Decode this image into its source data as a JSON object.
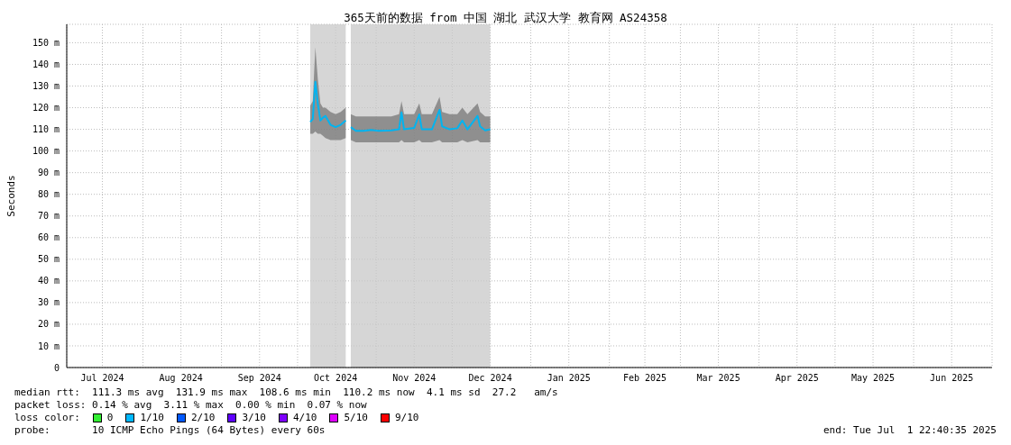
{
  "chart_data": {
    "type": "line",
    "title": "365天前的数据 from 中国 湖北 武汉大学 教育网 AS24358",
    "ylabel": "Seconds",
    "x": [
      "2024-10-06",
      "2024-10-07",
      "2024-10-08",
      "2024-10-09",
      "2024-10-10",
      "2024-10-11",
      "2024-10-12",
      "2024-10-14",
      "2024-10-16",
      "2024-10-18",
      "2024-10-20",
      "2024-10-21",
      "2024-10-22",
      "2024-10-24",
      "2024-10-27",
      "2024-10-30",
      "2024-11-02",
      "2024-11-07",
      "2024-11-10",
      "2024-11-11",
      "2024-11-12",
      "2024-11-16",
      "2024-11-18",
      "2024-11-19",
      "2024-11-23",
      "2024-11-26",
      "2024-11-27",
      "2024-11-30",
      "2024-12-03",
      "2024-12-05",
      "2024-12-07",
      "2024-12-11",
      "2024-12-12",
      "2024-12-14",
      "2024-12-16"
    ],
    "series": [
      {
        "color": "#00b4f0",
        "values": [
          113.4,
          114.8,
          132,
          121.7,
          114.1,
          115.4,
          116.2,
          112.1,
          111,
          112.1,
          114.1,
          null,
          111,
          109.3,
          109.3,
          109.7,
          109.3,
          109.5,
          110,
          117.8,
          110,
          110.7,
          116.9,
          110,
          110,
          119,
          111.4,
          110,
          110.5,
          114.1,
          110,
          116.2,
          111.4,
          109.5,
          110
        ],
        "lower": [
          108,
          108,
          109,
          108,
          108,
          107,
          106,
          105,
          105,
          105,
          106,
          null,
          105,
          104,
          104,
          104,
          104,
          104,
          104,
          105,
          104,
          104,
          105,
          104,
          104,
          105,
          104,
          104,
          104,
          105,
          104,
          105,
          104,
          104,
          104
        ],
        "upper": [
          121,
          123,
          148,
          133,
          122,
          120,
          120,
          118,
          117,
          118,
          120,
          null,
          117,
          116,
          116,
          116,
          116,
          116,
          117,
          123,
          117,
          117,
          122,
          117,
          117,
          125,
          118,
          117,
          117,
          120,
          117,
          122,
          118,
          116,
          116
        ]
      }
    ],
    "xlim": [
      "2024-07-01T22:40",
      "2025-07-01T22:40"
    ],
    "xticks": [
      {
        "value": "2024-07-16",
        "label": "Jul 2024"
      },
      {
        "value": "2024-08-01",
        "label": null
      },
      {
        "value": "2024-08-16",
        "label": "Aug 2024"
      },
      {
        "value": "2024-09-01",
        "label": null
      },
      {
        "value": "2024-09-16",
        "label": "Sep 2024"
      },
      {
        "value": "2024-10-01",
        "label": null
      },
      {
        "value": "2024-10-16",
        "label": "Oct 2024"
      },
      {
        "value": "2024-11-01",
        "label": null
      },
      {
        "value": "2024-11-16",
        "label": "Nov 2024"
      },
      {
        "value": "2024-12-01",
        "label": null
      },
      {
        "value": "2024-12-16",
        "label": "Dec 2024"
      },
      {
        "value": "2025-01-01",
        "label": null
      },
      {
        "value": "2025-01-16",
        "label": "Jan 2025"
      },
      {
        "value": "2025-02-01",
        "label": null
      },
      {
        "value": "2025-02-15",
        "label": "Feb 2025"
      },
      {
        "value": "2025-03-01",
        "label": null
      },
      {
        "value": "2025-03-16",
        "label": "Mar 2025"
      },
      {
        "value": "2025-04-01",
        "label": null
      },
      {
        "value": "2025-04-16",
        "label": "Apr 2025"
      },
      {
        "value": "2025-05-01",
        "label": null
      },
      {
        "value": "2025-05-16",
        "label": "May 2025"
      },
      {
        "value": "2025-06-01",
        "label": null
      },
      {
        "value": "2025-06-16",
        "label": "Jun 2025"
      }
    ],
    "ylim": [
      0,
      158.5
    ],
    "yticks": [
      0,
      {
        "value": 10,
        "label": "10 m"
      },
      {
        "value": 20,
        "label": "20 m"
      },
      {
        "value": 30,
        "label": "30 m"
      },
      {
        "value": 40,
        "label": "40 m"
      },
      {
        "value": 50,
        "label": "50 m"
      },
      {
        "value": 60,
        "label": "60 m"
      },
      {
        "value": 70,
        "label": "70 m"
      },
      {
        "value": 80,
        "label": "80 m"
      },
      {
        "value": 90,
        "label": "90 m"
      },
      {
        "value": 100,
        "label": "100 m"
      },
      {
        "value": 110,
        "label": "110 m"
      },
      {
        "value": 120,
        "label": "120 m"
      },
      {
        "value": 130,
        "label": "130 m"
      },
      {
        "value": 140,
        "label": "140 m"
      },
      {
        "value": 150,
        "label": "150 m"
      }
    ],
    "bands": [
      {
        "axis": "x",
        "from": "2024-10-06",
        "to": "2024-10-20",
        "color": "#c8c8c8"
      },
      {
        "axis": "x",
        "from": "2024-10-22",
        "to": "2024-12-16",
        "color": "#c8c8c8"
      }
    ],
    "grid": true,
    "marker": "none",
    "line_style": "solid",
    "annotations": [
      "median rtt:  111.3 ms avg  131.9 ms max  108.6 ms min  110.2 ms now  4.1 ms sd  27.2   am/s",
      "packet loss: 0.14 % avg  3.11 % max  0.00 % min  0.07 % now",
      "loss color:",
      "0",
      "1/10",
      "2/10",
      "3/10",
      "4/10",
      "5/10",
      "9/10",
      "probe:       10 ICMP Echo Pings (64 Bytes) every 60s",
      "end: Tue Jul  1 22:40:35 2025"
    ]
  }
}
